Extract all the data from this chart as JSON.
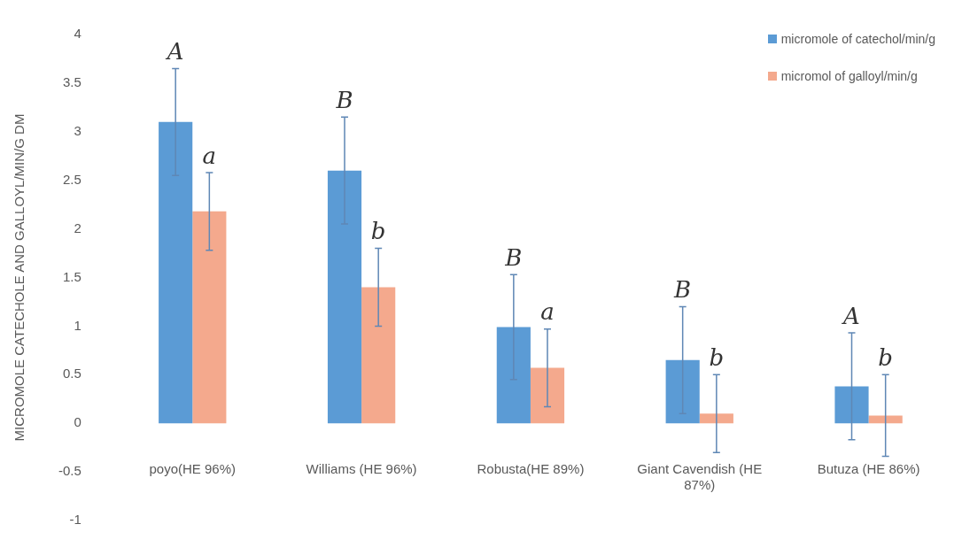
{
  "chart_data": {
    "type": "bar",
    "ylabel": "MICROMOLE CATECHOLE AND GALLOYL/MIN/G DM",
    "categories": [
      "poyo(HE 96%)",
      "Williams (HE 96%)",
      "Robusta(HE 89%)",
      "Giant Cavendish (HE 87%)",
      "Butuza (HE 86%)"
    ],
    "series": [
      {
        "name": "micromole of catechol/min/g",
        "color": "#5b9bd5",
        "values": [
          3.1,
          2.6,
          0.99,
          0.65,
          0.38
        ],
        "errors": [
          0.55,
          0.55,
          0.54,
          0.55,
          0.55
        ]
      },
      {
        "name": "micromol of galloyl/min/g",
        "color": "#f4a98d",
        "values": [
          2.18,
          1.4,
          0.57,
          0.1,
          0.08
        ],
        "errors": [
          0.4,
          0.4,
          0.4,
          0.4,
          0.42
        ]
      }
    ],
    "ylim": [
      -1,
      4
    ],
    "yticks": [
      -1,
      -0.5,
      0,
      0.5,
      1,
      1.5,
      2,
      2.5,
      3,
      3.5,
      4
    ],
    "grid": false,
    "legend": "top right",
    "annotations": [
      "A",
      "a",
      "B",
      "b",
      "B",
      "a",
      "B",
      "b",
      "A",
      "b"
    ]
  }
}
